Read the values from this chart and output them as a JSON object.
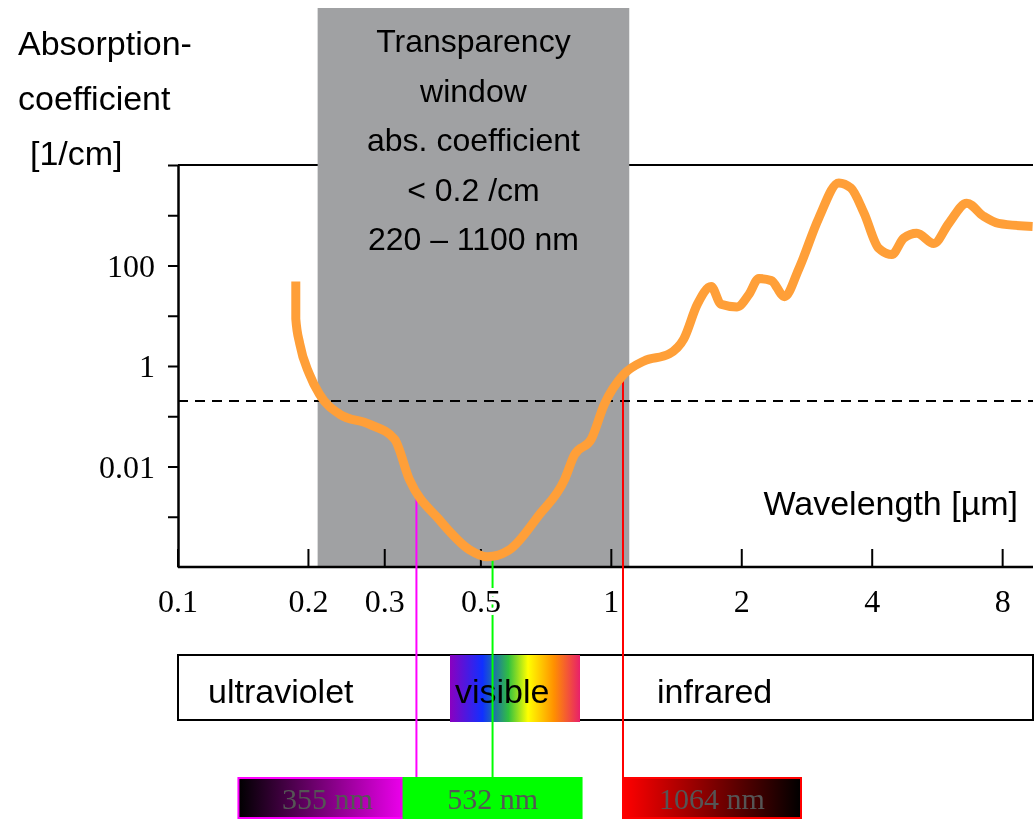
{
  "chart_data": {
    "type": "line",
    "ylabel": "Absorption-\ncoefficient\n[1/cm]",
    "xlabel": "Wavelength [µm]",
    "log": "xy",
    "xlim": [
      0.1,
      9.4
    ],
    "xticks": [
      0.1,
      0.2,
      0.3,
      0.5,
      1,
      2,
      4,
      8
    ],
    "ylim": [
      0.0001,
      10000
    ],
    "yticks": [
      {
        "value": 10000,
        "label": null
      },
      {
        "value": 1000,
        "label": null
      },
      100,
      {
        "value": 10,
        "label": null
      },
      1,
      {
        "value": 0.1,
        "label": null
      },
      0.01,
      {
        "value": 0.001,
        "label": null
      }
    ],
    "series": [
      {
        "color": "#ff9f38",
        "x": [
          0.187,
          0.187,
          0.191,
          0.201,
          0.212,
          0.236,
          0.277,
          0.316,
          0.342,
          0.401,
          0.471,
          0.518,
          0.582,
          0.682,
          0.78,
          0.822,
          0.899,
          0.963,
          1.07,
          1.19,
          1.36,
          1.47,
          1.58,
          1.7,
          1.79,
          1.95,
          2.08,
          2.19,
          2.34,
          2.51,
          2.71,
          3.01,
          3.35,
          3.57,
          3.83,
          4.14,
          4.44,
          4.73,
          5.07,
          5.55,
          6.01,
          6.61,
          7.23,
          7.83,
          9.38
        ],
        "values": [
          48,
          8.7,
          2.75,
          0.69,
          0.275,
          0.11,
          0.069,
          0.035,
          0.0055,
          0.00087,
          0.00022,
          0.00016,
          0.00022,
          0.0011,
          0.0055,
          0.017,
          0.035,
          0.17,
          0.69,
          1.26,
          1.74,
          3.47,
          17,
          38,
          17,
          15,
          27,
          55,
          50,
          24,
          87,
          870,
          4400,
          3500,
          1100,
          220,
          166,
          350,
          440,
          275,
          690,
          1740,
          955,
          690,
          600
        ]
      }
    ],
    "bands": [
      {
        "axis": "x",
        "from": 0.21,
        "to": 1.1,
        "label": "Transparency\nwindow\nabs. coefficient\n< 0.2 /cm\n220 – 1100 nm",
        "color": "#a0a1a3"
      }
    ],
    "ref_lines": [
      {
        "axis": "y",
        "value": 0.2,
        "color": "#000000",
        "line_style": "dashed"
      },
      {
        "axis": "x",
        "value": 0.355,
        "label": "355 nm",
        "color": "#ff00ff"
      },
      {
        "axis": "x",
        "value": 0.532,
        "label": "532 nm",
        "color": "#00ff00"
      },
      {
        "axis": "x",
        "value": 1.064,
        "label": "1064 nm",
        "color": "#ff0000"
      }
    ],
    "annotations": [
      "ultraviolet",
      "visible",
      "infrared"
    ]
  }
}
